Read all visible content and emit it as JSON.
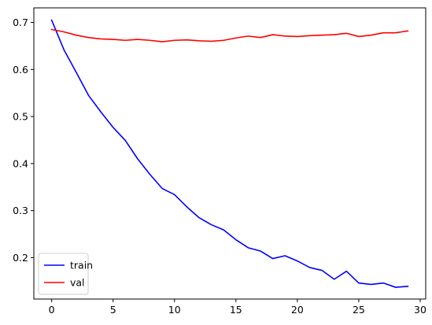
{
  "chart_data": {
    "type": "line",
    "title": "",
    "xlabel": "",
    "ylabel": "",
    "xlim": [
      -1.45,
      30.45
    ],
    "ylim": [
      0.112,
      0.731
    ],
    "x_ticks": [
      0,
      5,
      10,
      15,
      20,
      25,
      30
    ],
    "x_tick_labels": [
      "0",
      "5",
      "10",
      "15",
      "20",
      "25",
      "30"
    ],
    "y_ticks": [
      0.2,
      0.3,
      0.4,
      0.5,
      0.6,
      0.7
    ],
    "y_tick_labels": [
      "0.2",
      "0.3",
      "0.4",
      "0.5",
      "0.6",
      "0.7"
    ],
    "grid": false,
    "legend_position": "lower-left",
    "x": [
      0,
      1,
      2,
      3,
      4,
      5,
      6,
      7,
      8,
      9,
      10,
      11,
      12,
      13,
      14,
      15,
      16,
      17,
      18,
      19,
      20,
      21,
      22,
      23,
      24,
      25,
      26,
      27,
      28,
      29
    ],
    "series": [
      {
        "name": "train",
        "color": "#0000ff",
        "values": [
          0.705,
          0.642,
          0.594,
          0.545,
          0.51,
          0.477,
          0.449,
          0.41,
          0.377,
          0.347,
          0.334,
          0.308,
          0.285,
          0.27,
          0.259,
          0.238,
          0.221,
          0.214,
          0.198,
          0.204,
          0.193,
          0.179,
          0.173,
          0.154,
          0.171,
          0.146,
          0.143,
          0.146,
          0.137,
          0.139
        ]
      },
      {
        "name": "val",
        "color": "#ff0000",
        "values": [
          0.685,
          0.68,
          0.673,
          0.668,
          0.665,
          0.664,
          0.662,
          0.664,
          0.662,
          0.659,
          0.662,
          0.663,
          0.661,
          0.66,
          0.662,
          0.667,
          0.671,
          0.668,
          0.674,
          0.671,
          0.67,
          0.672,
          0.673,
          0.674,
          0.677,
          0.67,
          0.673,
          0.678,
          0.678,
          0.682
        ]
      }
    ]
  }
}
